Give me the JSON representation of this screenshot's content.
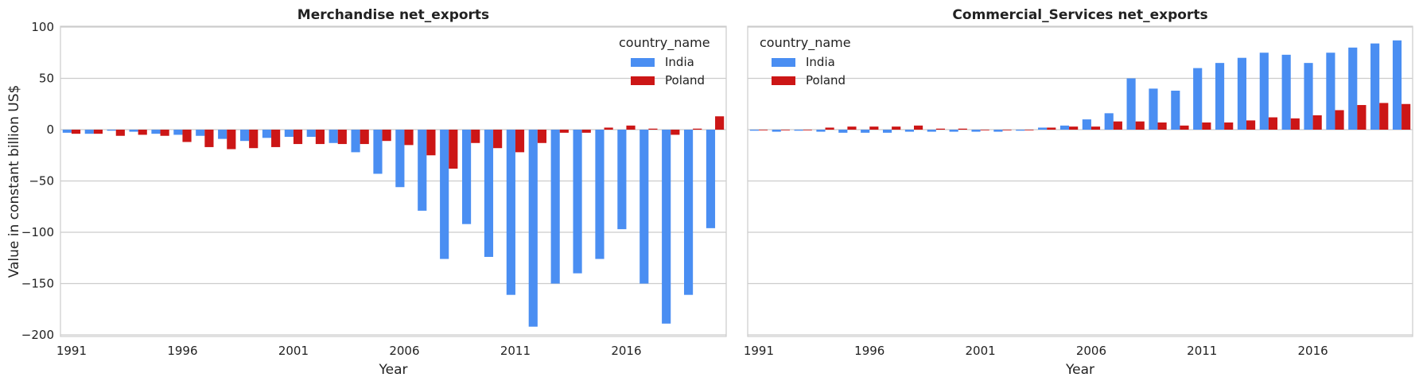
{
  "chart_data": [
    {
      "type": "bar",
      "title": "Merchandise net_exports",
      "xlabel": "Year",
      "ylabel": "Value in constant billion US$",
      "ylim": [
        -205,
        100
      ],
      "yticks": [
        100,
        50,
        0,
        -50,
        -100,
        -150,
        -200
      ],
      "xtick_labels": [
        "1991",
        "1996",
        "2001",
        "2006",
        "2011",
        "2016"
      ],
      "categories": [
        "1991",
        "1992",
        "1993",
        "1994",
        "1995",
        "1996",
        "1997",
        "1998",
        "1999",
        "2000",
        "2001",
        "2002",
        "2003",
        "2004",
        "2005",
        "2006",
        "2007",
        "2008",
        "2009",
        "2010",
        "2011",
        "2012",
        "2013",
        "2014",
        "2015",
        "2016",
        "2017",
        "2018",
        "2019",
        "2020"
      ],
      "legend_title": "country_name",
      "legend_position": "top-right",
      "grid": true,
      "series": [
        {
          "name": "India",
          "color": "#4a8ef2",
          "values": [
            -3,
            -4,
            -1,
            -2,
            -4,
            -5,
            -6,
            -9,
            -11,
            -8,
            -7,
            -7,
            -13,
            -22,
            -43,
            -56,
            -79,
            -126,
            -92,
            -124,
            -161,
            -192,
            -150,
            -140,
            -126,
            -97,
            -150,
            -189,
            -161,
            -96
          ]
        },
        {
          "name": "Poland",
          "color": "#cc1616",
          "values": [
            -4,
            -4,
            -6,
            -5,
            -6,
            -12,
            -17,
            -19,
            -18,
            -17,
            -14,
            -14,
            -14,
            -14,
            -11,
            -15,
            -25,
            -38,
            -13,
            -18,
            -22,
            -13,
            -3,
            -3,
            2,
            4,
            1,
            -5,
            1,
            13
          ]
        }
      ]
    },
    {
      "type": "bar",
      "title": "Commercial_Services net_exports",
      "xlabel": "Year",
      "ylabel": "",
      "ylim": [
        -205,
        100
      ],
      "yticks": [
        100,
        50,
        0,
        -50,
        -100,
        -150,
        -200
      ],
      "xtick_labels": [
        "1991",
        "1996",
        "2001",
        "2006",
        "2011",
        "2016"
      ],
      "categories": [
        "1991",
        "1992",
        "1993",
        "1994",
        "1995",
        "1996",
        "1997",
        "1998",
        "1999",
        "2000",
        "2001",
        "2002",
        "2003",
        "2004",
        "2005",
        "2006",
        "2007",
        "2008",
        "2009",
        "2010",
        "2011",
        "2012",
        "2013",
        "2014",
        "2015",
        "2016",
        "2017",
        "2018",
        "2019",
        "2020"
      ],
      "legend_title": "country_name",
      "legend_position": "top-left",
      "grid": true,
      "series": [
        {
          "name": "India",
          "color": "#4a8ef2",
          "values": [
            -1,
            -2,
            -1,
            -2,
            -3,
            -3,
            -3,
            -2,
            -2,
            -2,
            -2,
            -2,
            -1,
            2,
            4,
            10,
            16,
            50,
            40,
            38,
            60,
            65,
            70,
            75,
            73,
            65,
            75,
            80,
            84,
            87
          ]
        },
        {
          "name": "Poland",
          "color": "#cc1616",
          "values": [
            0,
            0,
            0,
            2,
            3,
            3,
            3,
            4,
            1,
            1,
            0,
            0,
            0,
            2,
            3,
            3,
            8,
            8,
            7,
            4,
            7,
            7,
            9,
            12,
            11,
            14,
            19,
            24,
            26,
            25
          ]
        }
      ]
    }
  ]
}
